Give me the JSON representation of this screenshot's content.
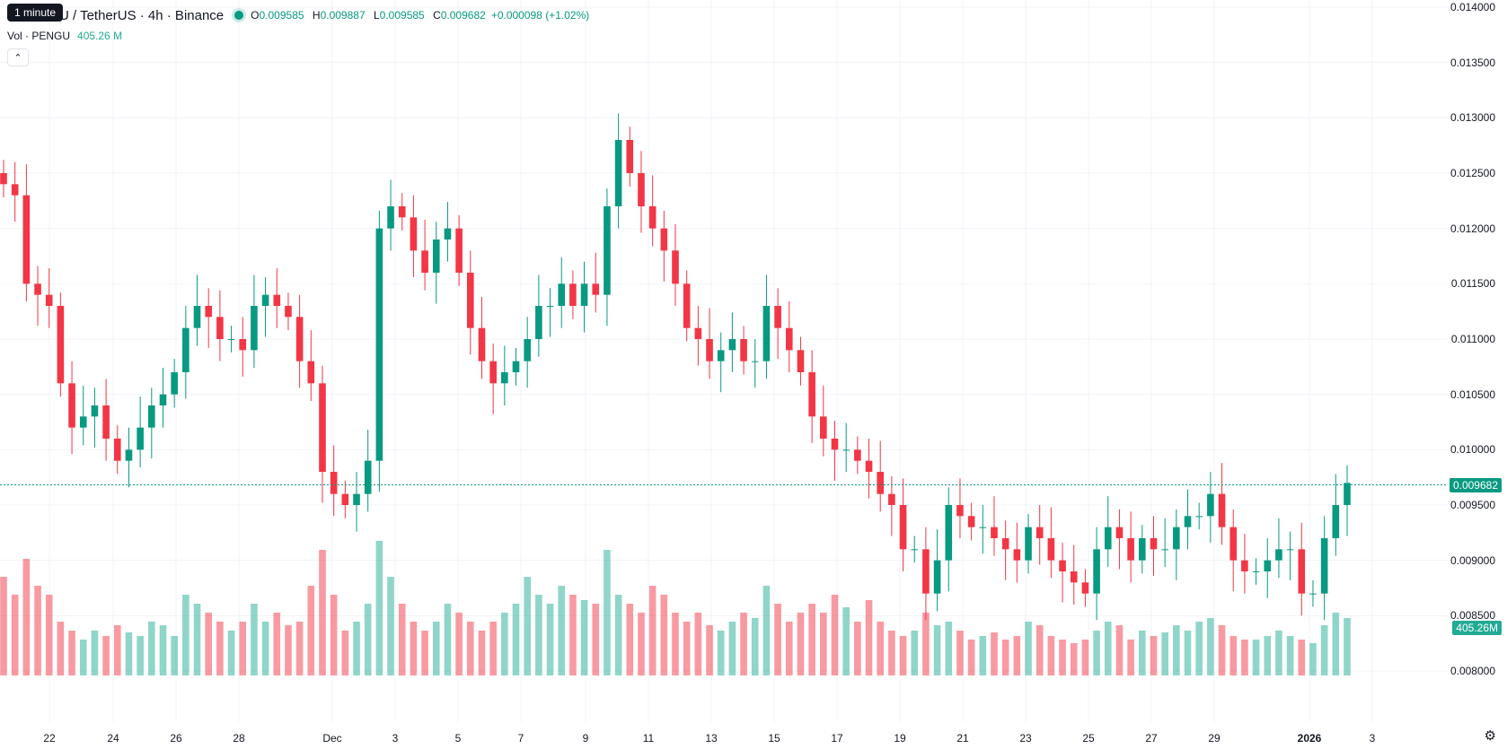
{
  "tooltip": "1 minute",
  "legend": {
    "symbol": "U / TetherUS · 4h · Binance",
    "o_label": "O",
    "o": "0.009585",
    "h_label": "H",
    "h": "0.009887",
    "l_label": "L",
    "l": "0.009585",
    "c_label": "C",
    "c": "0.009682",
    "change": "+0.000098 (+1.02%)"
  },
  "volume": {
    "label": "Vol · PENGU",
    "value": "405.26 M"
  },
  "collapse_icon": "chevron-up-icon",
  "price_axis": [
    "0.014000",
    "0.013500",
    "0.013000",
    "0.012500",
    "0.012000",
    "0.011500",
    "0.011000",
    "0.010500",
    "0.010000",
    "0.009500",
    "0.009000",
    "0.008500",
    "0.008000"
  ],
  "last_price_tag": "0.009682",
  "volume_tag": "405.26M",
  "time_axis": [
    "22",
    "24",
    "26",
    "28",
    "Dec",
    "3",
    "5",
    "7",
    "9",
    "11",
    "13",
    "15",
    "17",
    "19",
    "21",
    "23",
    "25",
    "27",
    "29",
    "2026",
    "3"
  ],
  "colors": {
    "up": "#089981",
    "down": "#f23645",
    "vol_up": "#22ab9480",
    "vol_down": "#f2364580"
  },
  "chart_data": {
    "type": "candlestick",
    "interval": "4h",
    "series_name": "U / TetherUS",
    "y_range": [
      0.008,
      0.014
    ],
    "last_close": 0.009682,
    "close": [
      0.0124,
      0.0123,
      0.0115,
      0.0114,
      0.0113,
      0.0106,
      0.0102,
      0.0103,
      0.0104,
      0.0101,
      0.0099,
      0.01,
      0.0102,
      0.0104,
      0.0105,
      0.0107,
      0.0111,
      0.0113,
      0.0112,
      0.011,
      0.011,
      0.0109,
      0.0113,
      0.0114,
      0.0113,
      0.0112,
      0.0108,
      0.0106,
      0.0098,
      0.0096,
      0.0095,
      0.0096,
      0.0099,
      0.012,
      0.0122,
      0.0121,
      0.0118,
      0.0116,
      0.0119,
      0.012,
      0.0116,
      0.0111,
      0.0108,
      0.0106,
      0.0107,
      0.0108,
      0.011,
      0.0113,
      0.0113,
      0.0115,
      0.0113,
      0.0115,
      0.0114,
      0.0122,
      0.0128,
      0.0125,
      0.0122,
      0.012,
      0.0118,
      0.0115,
      0.0111,
      0.011,
      0.0108,
      0.0109,
      0.011,
      0.0108,
      0.0108,
      0.0113,
      0.0111,
      0.0109,
      0.0107,
      0.0103,
      0.0101,
      0.01,
      0.01,
      0.0099,
      0.0098,
      0.0096,
      0.0095,
      0.0091,
      0.0091,
      0.0087,
      0.009,
      0.0095,
      0.0094,
      0.0093,
      0.0093,
      0.0092,
      0.0091,
      0.009,
      0.0093,
      0.0092,
      0.009,
      0.0089,
      0.0088,
      0.0087,
      0.0091,
      0.0093,
      0.0092,
      0.009,
      0.0092,
      0.0091,
      0.0091,
      0.0093,
      0.0094,
      0.0094,
      0.0096,
      0.0093,
      0.009,
      0.0089,
      0.0089,
      0.009,
      0.0091,
      0.0091,
      0.0087,
      0.0087,
      0.0092,
      0.0095,
      0.0097
    ],
    "volume_relative": [
      0.55,
      0.45,
      0.65,
      0.5,
      0.45,
      0.3,
      0.25,
      0.2,
      0.25,
      0.22,
      0.28,
      0.24,
      0.22,
      0.3,
      0.28,
      0.22,
      0.45,
      0.4,
      0.35,
      0.3,
      0.25,
      0.3,
      0.4,
      0.3,
      0.35,
      0.28,
      0.3,
      0.5,
      0.7,
      0.45,
      0.25,
      0.3,
      0.4,
      0.75,
      0.55,
      0.4,
      0.3,
      0.25,
      0.3,
      0.4,
      0.35,
      0.3,
      0.25,
      0.3,
      0.35,
      0.4,
      0.55,
      0.45,
      0.4,
      0.5,
      0.45,
      0.42,
      0.4,
      0.7,
      0.45,
      0.4,
      0.35,
      0.5,
      0.45,
      0.35,
      0.3,
      0.35,
      0.28,
      0.25,
      0.3,
      0.35,
      0.32,
      0.5,
      0.4,
      0.3,
      0.35,
      0.4,
      0.35,
      0.45,
      0.38,
      0.3,
      0.42,
      0.3,
      0.25,
      0.22,
      0.25,
      0.35,
      0.28,
      0.3,
      0.25,
      0.2,
      0.22,
      0.24,
      0.2,
      0.22,
      0.3,
      0.28,
      0.22,
      0.2,
      0.18,
      0.2,
      0.25,
      0.3,
      0.28,
      0.2,
      0.25,
      0.22,
      0.24,
      0.28,
      0.25,
      0.3,
      0.32,
      0.28,
      0.22,
      0.2,
      0.2,
      0.22,
      0.25,
      0.22,
      0.2,
      0.18,
      0.28,
      0.35,
      0.32
    ]
  }
}
